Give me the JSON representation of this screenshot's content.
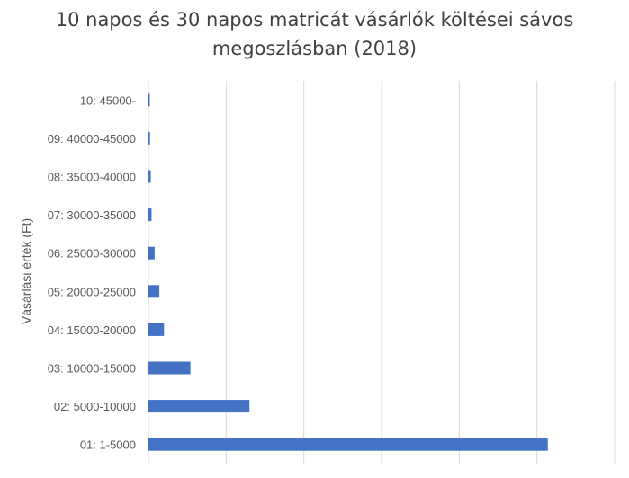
{
  "chart_data": {
    "type": "bar",
    "orientation": "horizontal",
    "title_lines": [
      "10 napos és 30 napos matricát vásárlók költései sávos",
      "megoszlásban (2018)"
    ],
    "ylabel": "Vásárlási érték (Ft)",
    "xlabel": "",
    "categories": [
      "01: 1-5000",
      "02: 5000-10000",
      "03: 10000-15000",
      "04: 15000-20000",
      "05: 20000-25000",
      "06: 25000-30000",
      "07: 30000-35000",
      "08: 35000-40000",
      "09: 40000-45000",
      "10: 45000-"
    ],
    "values": [
      51.4,
      13,
      5.4,
      2.0,
      1.4,
      0.8,
      0.4,
      0.3,
      0.2,
      0.15
    ],
    "xlim": [
      0,
      60
    ],
    "gridlines": [
      0,
      10,
      20,
      30,
      40,
      50,
      60
    ],
    "tick_labels_shown": false,
    "grid": true,
    "legend": "none",
    "bar_color": "#4472c4",
    "grid_color": "#d9d9d9",
    "text_color": "#595959"
  }
}
